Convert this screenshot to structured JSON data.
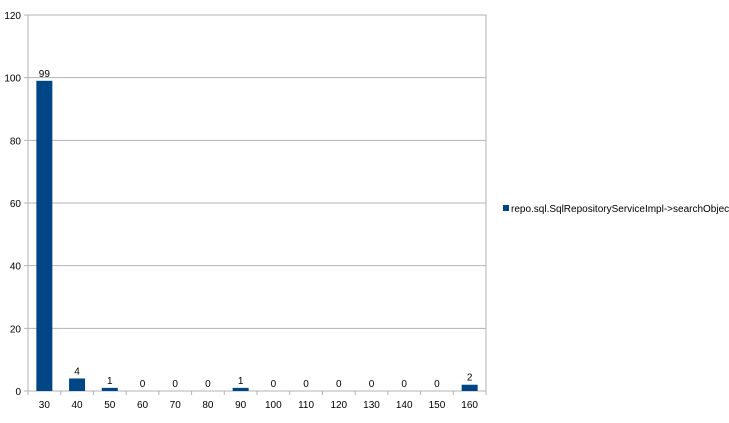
{
  "chart_data": {
    "type": "bar",
    "categories": [
      "30",
      "40",
      "50",
      "60",
      "70",
      "80",
      "90",
      "100",
      "110",
      "120",
      "130",
      "140",
      "150",
      "160"
    ],
    "series": [
      {
        "name": "repo.sql.SqlRepositoryServiceImpl->searchObjects",
        "values": [
          99,
          4,
          1,
          0,
          0,
          0,
          1,
          0,
          0,
          0,
          0,
          0,
          0,
          2
        ],
        "color": "#004586"
      }
    ],
    "ylim": [
      0,
      120
    ],
    "yticks": [
      0,
      20,
      40,
      60,
      80,
      100,
      120
    ],
    "grid": true,
    "legend": "right",
    "data_labels": true
  }
}
